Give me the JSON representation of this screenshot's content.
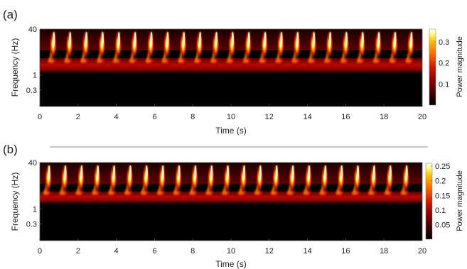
{
  "chart_data": [
    {
      "type": "heatmap",
      "panel_label": "(a)",
      "xlabel": "Time (s)",
      "ylabel": "Frequency (Hz)",
      "colorbar_label": "Power magnitude",
      "x_ticks": [
        "0",
        "2",
        "4",
        "6",
        "8",
        "10",
        "12",
        "14",
        "16",
        "18",
        "20"
      ],
      "xlim": [
        0,
        20
      ],
      "y_ticks": [
        "40",
        "1",
        "0.3"
      ],
      "y_tick_values": [
        40,
        1,
        0.3
      ],
      "y_scale": "log",
      "ylim": [
        0.08,
        40
      ],
      "colorbar_ticks": [
        "0.3",
        "0.2",
        "0.1"
      ],
      "colorbar_tick_values": [
        0.3,
        0.2,
        0.1
      ],
      "clim": [
        0,
        0.36
      ],
      "burst_times_s": [
        0.7,
        1.55,
        2.4,
        3.25,
        4.1,
        4.95,
        5.8,
        6.65,
        7.5,
        8.35,
        9.2,
        10.05,
        10.9,
        11.75,
        12.6,
        13.45,
        14.3,
        15.15,
        16.0,
        16.85,
        17.7,
        18.55,
        19.4
      ],
      "colormap": [
        "#000000",
        "#3a0000",
        "#8a0000",
        "#d21a00",
        "#ff6a00",
        "#ffc000",
        "#ffff80",
        "#ffffff"
      ]
    },
    {
      "type": "heatmap",
      "panel_label": "(b)",
      "xlabel": "Time (s)",
      "ylabel": "Frequency (Hz)",
      "colorbar_label": "Power magnitude",
      "x_ticks": [
        "0",
        "2",
        "4",
        "6",
        "8",
        "10",
        "12",
        "14",
        "16",
        "18",
        "20"
      ],
      "xlim": [
        0,
        20
      ],
      "y_ticks": [
        "40",
        "1",
        "0.3"
      ],
      "y_tick_values": [
        40,
        1,
        0.3
      ],
      "y_scale": "log",
      "ylim": [
        0.08,
        40
      ],
      "colorbar_ticks": [
        "0.25",
        "0.2",
        "0.15",
        "0.1",
        "0.05"
      ],
      "colorbar_tick_values": [
        0.25,
        0.2,
        0.15,
        0.1,
        0.05
      ],
      "clim": [
        0,
        0.26
      ],
      "burst_times_s": [
        0.45,
        1.3,
        2.15,
        3.0,
        3.85,
        4.7,
        5.55,
        6.4,
        7.25,
        8.1,
        8.95,
        9.8,
        10.65,
        11.5,
        12.35,
        13.2,
        14.05,
        14.9,
        15.75,
        16.6,
        17.45,
        18.3,
        19.15
      ],
      "colormap": [
        "#000000",
        "#3a0000",
        "#8a0000",
        "#d21a00",
        "#ff6a00",
        "#ffc000",
        "#ffff80",
        "#ffffff"
      ]
    }
  ]
}
